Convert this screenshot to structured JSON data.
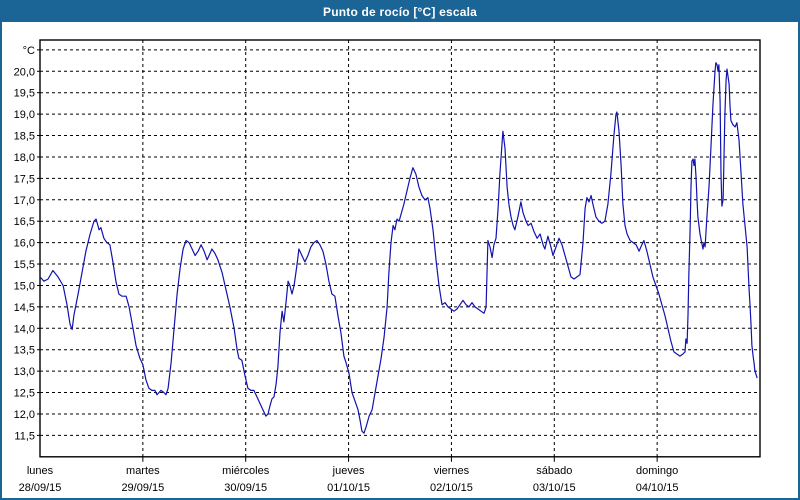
{
  "window": {
    "title": "Punto de rocío [°C] escala",
    "titlebar_color": "#1a6496",
    "border_color": "#1a6496"
  },
  "chart_data": {
    "type": "line",
    "title": "Punto de rocío [°C] escala",
    "y_unit": "°C",
    "ylim": [
      11.0,
      20.73
    ],
    "y_tick_min": 11.5,
    "y_tick_max": 20.5,
    "y_label_max": 20.0,
    "y_tick_step": 0.5,
    "y_tick_labels": [
      "20,0",
      "19,5",
      "19,0",
      "18,5",
      "18,0",
      "17,5",
      "17,0",
      "16,5",
      "16,0",
      "15,5",
      "15,0",
      "14,5",
      "14,0",
      "13,5",
      "13,0",
      "12,5",
      "12,0",
      "11,5"
    ],
    "grid": "dashed",
    "legend": "none",
    "line_color": "#1212b0",
    "axis_color": "#000000",
    "hours_per_day": 24,
    "days": [
      {
        "name": "lunes",
        "date": "28/09/15"
      },
      {
        "name": "martes",
        "date": "29/09/15"
      },
      {
        "name": "miércoles",
        "date": "30/09/15"
      },
      {
        "name": "jueves",
        "date": "01/10/15"
      },
      {
        "name": "viernes",
        "date": "02/10/15"
      },
      {
        "name": "sábado",
        "date": "03/10/15"
      },
      {
        "name": "domingo",
        "date": "04/10/15"
      }
    ],
    "series": [
      {
        "name": "Punto de rocío [°C]",
        "x_unit": "hours_from_start",
        "points": [
          [
            0,
            15.2
          ],
          [
            0.9,
            15.1
          ],
          [
            1.9,
            15.15
          ],
          [
            3,
            15.35
          ],
          [
            4.2,
            15.2
          ],
          [
            5.4,
            15.0
          ],
          [
            6.3,
            14.55
          ],
          [
            7,
            14.1
          ],
          [
            7.5,
            13.97
          ],
          [
            7.9,
            14.3
          ],
          [
            8.9,
            14.8
          ],
          [
            9.8,
            15.3
          ],
          [
            10.7,
            15.8
          ],
          [
            11.7,
            16.2
          ],
          [
            12.6,
            16.5
          ],
          [
            13.1,
            16.55
          ],
          [
            13.8,
            16.3
          ],
          [
            14.2,
            16.35
          ],
          [
            14.9,
            16.1
          ],
          [
            15.6,
            16.0
          ],
          [
            16.3,
            15.95
          ],
          [
            17,
            15.55
          ],
          [
            17.7,
            15.1
          ],
          [
            18.4,
            14.8
          ],
          [
            19.1,
            14.75
          ],
          [
            20.1,
            14.75
          ],
          [
            20.8,
            14.5
          ],
          [
            21.7,
            14.0
          ],
          [
            22.4,
            13.6
          ],
          [
            23.3,
            13.3
          ],
          [
            24,
            13.15
          ],
          [
            24.7,
            12.8
          ],
          [
            25.4,
            12.6
          ],
          [
            26.1,
            12.55
          ],
          [
            26.8,
            12.55
          ],
          [
            27.3,
            12.45
          ],
          [
            27.8,
            12.5
          ],
          [
            28.2,
            12.55
          ],
          [
            28.9,
            12.5
          ],
          [
            29.4,
            12.45
          ],
          [
            29.9,
            12.6
          ],
          [
            30.6,
            13.2
          ],
          [
            31.3,
            14.0
          ],
          [
            32,
            14.8
          ],
          [
            32.7,
            15.4
          ],
          [
            33.4,
            15.85
          ],
          [
            34.1,
            16.05
          ],
          [
            34.8,
            16.0
          ],
          [
            35.5,
            15.85
          ],
          [
            36.2,
            15.7
          ],
          [
            36.9,
            15.8
          ],
          [
            37.6,
            15.95
          ],
          [
            38.3,
            15.8
          ],
          [
            39,
            15.6
          ],
          [
            39.7,
            15.75
          ],
          [
            40.1,
            15.85
          ],
          [
            40.8,
            15.75
          ],
          [
            41.5,
            15.6
          ],
          [
            42.5,
            15.3
          ],
          [
            43.4,
            14.9
          ],
          [
            44.3,
            14.5
          ],
          [
            45.3,
            14.0
          ],
          [
            46,
            13.5
          ],
          [
            46.4,
            13.3
          ],
          [
            47.1,
            13.25
          ],
          [
            47.8,
            12.9
          ],
          [
            48.5,
            12.6
          ],
          [
            49.2,
            12.55
          ],
          [
            49.9,
            12.55
          ],
          [
            50.6,
            12.4
          ],
          [
            51.3,
            12.25
          ],
          [
            52,
            12.1
          ],
          [
            52.7,
            11.95
          ],
          [
            53.2,
            12.0
          ],
          [
            53.7,
            12.2
          ],
          [
            54.1,
            12.35
          ],
          [
            54.6,
            12.4
          ],
          [
            55.1,
            12.7
          ],
          [
            55.5,
            13.1
          ],
          [
            56,
            13.9
          ],
          [
            56.5,
            14.4
          ],
          [
            56.9,
            14.15
          ],
          [
            57.4,
            14.6
          ],
          [
            57.9,
            15.1
          ],
          [
            58.3,
            15.0
          ],
          [
            58.8,
            14.8
          ],
          [
            59.3,
            15.0
          ],
          [
            60,
            15.5
          ],
          [
            60.4,
            15.85
          ],
          [
            61.1,
            15.7
          ],
          [
            61.8,
            15.55
          ],
          [
            62.5,
            15.7
          ],
          [
            63.2,
            15.9
          ],
          [
            63.9,
            16.0
          ],
          [
            64.6,
            16.05
          ],
          [
            65.3,
            15.95
          ],
          [
            66,
            15.8
          ],
          [
            66.7,
            15.5
          ],
          [
            67.4,
            15.1
          ],
          [
            68.1,
            14.8
          ],
          [
            68.8,
            14.75
          ],
          [
            69.5,
            14.3
          ],
          [
            70.2,
            13.9
          ],
          [
            70.9,
            13.35
          ],
          [
            71.4,
            13.2
          ],
          [
            72.1,
            12.95
          ],
          [
            72.8,
            12.5
          ],
          [
            73.5,
            12.3
          ],
          [
            74.2,
            12.1
          ],
          [
            74.7,
            11.85
          ],
          [
            75.1,
            11.6
          ],
          [
            75.6,
            11.55
          ],
          [
            76.1,
            11.7
          ],
          [
            76.8,
            11.95
          ],
          [
            77.5,
            12.1
          ],
          [
            78.2,
            12.5
          ],
          [
            78.9,
            12.9
          ],
          [
            79.6,
            13.3
          ],
          [
            80.3,
            13.8
          ],
          [
            81,
            14.5
          ],
          [
            81.4,
            15.3
          ],
          [
            81.9,
            16.0
          ],
          [
            82.4,
            16.4
          ],
          [
            82.8,
            16.3
          ],
          [
            83.3,
            16.55
          ],
          [
            83.8,
            16.5
          ],
          [
            84.2,
            16.65
          ],
          [
            84.9,
            16.9
          ],
          [
            85.6,
            17.2
          ],
          [
            86.3,
            17.5
          ],
          [
            87,
            17.75
          ],
          [
            87.7,
            17.6
          ],
          [
            88.4,
            17.3
          ],
          [
            89.1,
            17.1
          ],
          [
            89.8,
            17.0
          ],
          [
            90.5,
            17.05
          ],
          [
            91,
            16.8
          ],
          [
            91.7,
            16.3
          ],
          [
            92.4,
            15.6
          ],
          [
            93.1,
            15.0
          ],
          [
            93.8,
            14.55
          ],
          [
            94.5,
            14.6
          ],
          [
            95.2,
            14.5
          ],
          [
            95.9,
            14.45
          ],
          [
            96.6,
            14.4
          ],
          [
            97.3,
            14.45
          ],
          [
            98,
            14.55
          ],
          [
            98.7,
            14.65
          ],
          [
            99.4,
            14.55
          ],
          [
            100.1,
            14.5
          ],
          [
            100.8,
            14.6
          ],
          [
            101.5,
            14.5
          ],
          [
            102.2,
            14.45
          ],
          [
            102.9,
            14.4
          ],
          [
            103.6,
            14.35
          ],
          [
            104.1,
            14.5
          ],
          [
            104.5,
            16.05
          ],
          [
            105,
            15.9
          ],
          [
            105.5,
            15.65
          ],
          [
            105.9,
            15.95
          ],
          [
            106.4,
            16.1
          ],
          [
            106.9,
            16.8
          ],
          [
            107.3,
            17.6
          ],
          [
            107.8,
            18.3
          ],
          [
            108,
            18.6
          ],
          [
            108.5,
            18.2
          ],
          [
            109,
            17.3
          ],
          [
            109.4,
            16.9
          ],
          [
            109.9,
            16.6
          ],
          [
            110.4,
            16.4
          ],
          [
            110.8,
            16.3
          ],
          [
            111.5,
            16.6
          ],
          [
            112.2,
            16.95
          ],
          [
            112.7,
            16.7
          ],
          [
            113.4,
            16.5
          ],
          [
            113.9,
            16.4
          ],
          [
            114.6,
            16.45
          ],
          [
            115.3,
            16.25
          ],
          [
            116,
            16.1
          ],
          [
            116.7,
            16.2
          ],
          [
            117.4,
            15.95
          ],
          [
            117.8,
            15.85
          ],
          [
            118.5,
            16.15
          ],
          [
            119.2,
            15.9
          ],
          [
            119.7,
            15.7
          ],
          [
            120.4,
            15.9
          ],
          [
            121.1,
            16.1
          ],
          [
            121.8,
            15.95
          ],
          [
            122.5,
            15.7
          ],
          [
            123.2,
            15.45
          ],
          [
            123.9,
            15.2
          ],
          [
            124.6,
            15.15
          ],
          [
            125.3,
            15.2
          ],
          [
            126,
            15.25
          ],
          [
            126.7,
            16.0
          ],
          [
            127.2,
            16.8
          ],
          [
            127.6,
            17.05
          ],
          [
            128.1,
            16.95
          ],
          [
            128.6,
            17.1
          ],
          [
            129,
            16.9
          ],
          [
            129.7,
            16.6
          ],
          [
            130.4,
            16.5
          ],
          [
            131.1,
            16.45
          ],
          [
            131.8,
            16.5
          ],
          [
            132.5,
            16.9
          ],
          [
            133.2,
            17.6
          ],
          [
            133.9,
            18.5
          ],
          [
            134.4,
            19.0
          ],
          [
            134.6,
            19.05
          ],
          [
            135.1,
            18.6
          ],
          [
            135.6,
            17.8
          ],
          [
            136,
            16.9
          ],
          [
            136.5,
            16.4
          ],
          [
            137,
            16.2
          ],
          [
            137.7,
            16.05
          ],
          [
            138.4,
            16.0
          ],
          [
            139.1,
            15.95
          ],
          [
            139.8,
            15.8
          ],
          [
            140.2,
            15.9
          ],
          [
            140.9,
            16.05
          ],
          [
            141.6,
            15.8
          ],
          [
            142.3,
            15.5
          ],
          [
            143,
            15.2
          ],
          [
            143.7,
            15.0
          ],
          [
            144.4,
            14.8
          ],
          [
            145.1,
            14.55
          ],
          [
            145.8,
            14.3
          ],
          [
            146.5,
            14.0
          ],
          [
            147.2,
            13.7
          ],
          [
            147.9,
            13.45
          ],
          [
            148.6,
            13.4
          ],
          [
            149.3,
            13.35
          ],
          [
            150,
            13.4
          ],
          [
            150.5,
            13.45
          ],
          [
            150.7,
            13.75
          ],
          [
            151,
            13.65
          ],
          [
            151.2,
            14.3
          ],
          [
            151.4,
            15.3
          ],
          [
            151.7,
            16.3
          ],
          [
            151.9,
            17.3
          ],
          [
            152.1,
            17.9
          ],
          [
            152.4,
            17.95
          ],
          [
            152.6,
            17.8
          ],
          [
            152.8,
            17.95
          ],
          [
            153.1,
            17.5
          ],
          [
            153.3,
            17.0
          ],
          [
            153.5,
            16.6
          ],
          [
            154,
            16.2
          ],
          [
            154.5,
            15.95
          ],
          [
            154.7,
            15.85
          ],
          [
            154.9,
            16.0
          ],
          [
            155.2,
            15.9
          ],
          [
            155.6,
            16.6
          ],
          [
            156.1,
            17.3
          ],
          [
            156.6,
            18.3
          ],
          [
            157,
            19.2
          ],
          [
            157.5,
            20.0
          ],
          [
            157.7,
            20.2
          ],
          [
            158,
            20.15
          ],
          [
            158.2,
            20.0
          ],
          [
            158.4,
            20.15
          ],
          [
            158.7,
            19.3
          ],
          [
            158.9,
            17.6
          ],
          [
            159.1,
            16.85
          ],
          [
            159.4,
            17.0
          ],
          [
            159.6,
            18.0
          ],
          [
            159.8,
            19.0
          ],
          [
            160.1,
            19.8
          ],
          [
            160.3,
            20.05
          ],
          [
            160.5,
            19.9
          ],
          [
            160.8,
            19.7
          ],
          [
            161,
            19.2
          ],
          [
            161.2,
            18.85
          ],
          [
            161.7,
            18.75
          ],
          [
            162.2,
            18.7
          ],
          [
            162.6,
            18.8
          ],
          [
            163.1,
            18.4
          ],
          [
            163.6,
            17.6
          ],
          [
            164,
            16.9
          ],
          [
            164.5,
            16.4
          ],
          [
            165,
            15.9
          ],
          [
            165.4,
            15.0
          ],
          [
            165.7,
            14.5
          ],
          [
            165.9,
            14.1
          ],
          [
            166.1,
            13.6
          ],
          [
            166.4,
            13.35
          ],
          [
            166.6,
            13.2
          ],
          [
            166.8,
            13.0
          ],
          [
            167,
            12.95
          ],
          [
            167.3,
            12.85
          ]
        ]
      }
    ]
  }
}
